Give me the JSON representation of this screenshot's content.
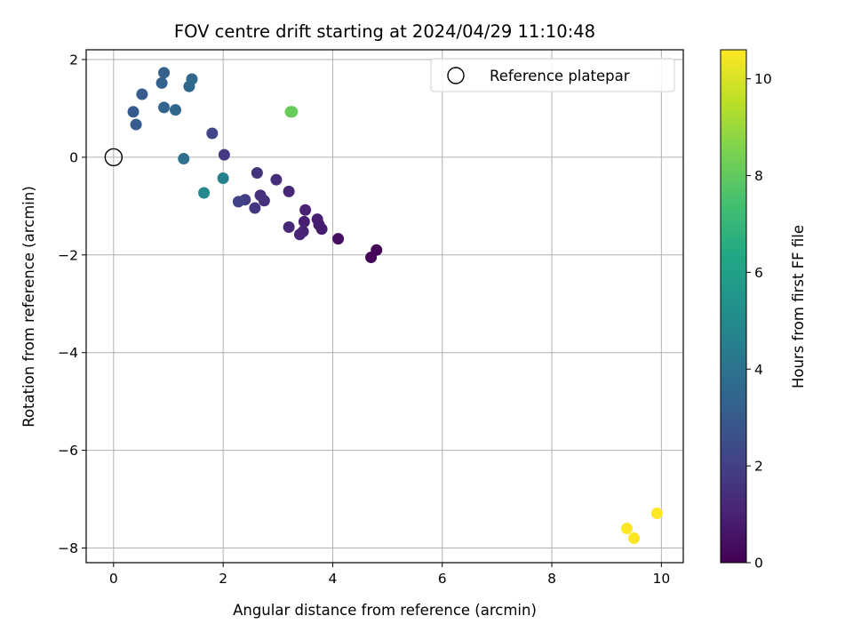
{
  "chart_data": {
    "type": "scatter",
    "title": "FOV centre drift starting at 2024/04/29 11:10:48",
    "xlabel": "Angular distance from reference (arcmin)",
    "ylabel": "Rotation from reference (arcmin)",
    "xlim": [
      -0.5,
      10.4
    ],
    "ylim": [
      -8.3,
      2.2
    ],
    "xticks": [
      0,
      2,
      4,
      6,
      8,
      10
    ],
    "yticks": [
      2,
      0,
      -2,
      -4,
      -6,
      -8
    ],
    "xtick_labels": [
      "0",
      "2",
      "4",
      "6",
      "8",
      "10"
    ],
    "ytick_labels": [
      "2",
      "0",
      "−2",
      "−4",
      "−6",
      "−8"
    ],
    "grid": true,
    "legend": {
      "position": "top-right",
      "label": "Reference platepar"
    },
    "reference_point": {
      "x": 0,
      "y": 0
    },
    "colorbar": {
      "label": "Hours from first FF file",
      "range": [
        0,
        10.6
      ],
      "ticks": [
        0,
        2,
        4,
        6,
        8,
        10
      ],
      "tick_labels": [
        "0",
        "2",
        "4",
        "6",
        "8",
        "10"
      ],
      "colormap": "viridis"
    },
    "points": [
      {
        "x": 4.8,
        "y": -1.9,
        "c": 0.1
      },
      {
        "x": 4.7,
        "y": -2.05,
        "c": 0.1
      },
      {
        "x": 4.1,
        "y": -1.67,
        "c": 0.4
      },
      {
        "x": 3.8,
        "y": -1.47,
        "c": 0.8
      },
      {
        "x": 3.75,
        "y": -1.38,
        "c": 0.8
      },
      {
        "x": 3.72,
        "y": -1.27,
        "c": 0.9
      },
      {
        "x": 3.5,
        "y": -1.08,
        "c": 1.0
      },
      {
        "x": 3.48,
        "y": -1.32,
        "c": 0.9
      },
      {
        "x": 3.46,
        "y": -1.52,
        "c": 1.0
      },
      {
        "x": 3.4,
        "y": -1.58,
        "c": 1.1
      },
      {
        "x": 3.2,
        "y": -1.43,
        "c": 1.2
      },
      {
        "x": 3.2,
        "y": -0.7,
        "c": 1.2
      },
      {
        "x": 2.97,
        "y": -0.46,
        "c": 1.4
      },
      {
        "x": 2.75,
        "y": -0.89,
        "c": 1.5
      },
      {
        "x": 2.68,
        "y": -0.78,
        "c": 1.5
      },
      {
        "x": 2.62,
        "y": -0.32,
        "c": 1.6
      },
      {
        "x": 2.58,
        "y": -1.04,
        "c": 1.7
      },
      {
        "x": 2.4,
        "y": -0.87,
        "c": 1.9
      },
      {
        "x": 2.28,
        "y": -0.91,
        "c": 2.1
      },
      {
        "x": 2.02,
        "y": 0.05,
        "c": 1.8
      },
      {
        "x": 1.8,
        "y": 0.49,
        "c": 2.2
      },
      {
        "x": 1.65,
        "y": -0.73,
        "c": 5.0
      },
      {
        "x": 2.0,
        "y": -0.43,
        "c": 4.6
      },
      {
        "x": 1.28,
        "y": -0.03,
        "c": 3.9
      },
      {
        "x": 1.13,
        "y": 0.97,
        "c": 3.5
      },
      {
        "x": 0.92,
        "y": 1.02,
        "c": 3.4
      },
      {
        "x": 0.88,
        "y": 1.52,
        "c": 3.3
      },
      {
        "x": 0.92,
        "y": 1.73,
        "c": 3.3
      },
      {
        "x": 1.38,
        "y": 1.45,
        "c": 3.5
      },
      {
        "x": 1.43,
        "y": 1.6,
        "c": 3.6
      },
      {
        "x": 0.52,
        "y": 1.29,
        "c": 3.1
      },
      {
        "x": 0.36,
        "y": 0.93,
        "c": 3.0
      },
      {
        "x": 0.41,
        "y": 0.67,
        "c": 3.1
      },
      {
        "x": 3.23,
        "y": 0.93,
        "c": 8.2
      },
      {
        "x": 3.26,
        "y": 0.93,
        "c": 8.1
      },
      {
        "x": 9.37,
        "y": -7.6,
        "c": 10.6
      },
      {
        "x": 9.5,
        "y": -7.8,
        "c": 10.6
      },
      {
        "x": 9.92,
        "y": -7.29,
        "c": 10.6
      }
    ]
  }
}
